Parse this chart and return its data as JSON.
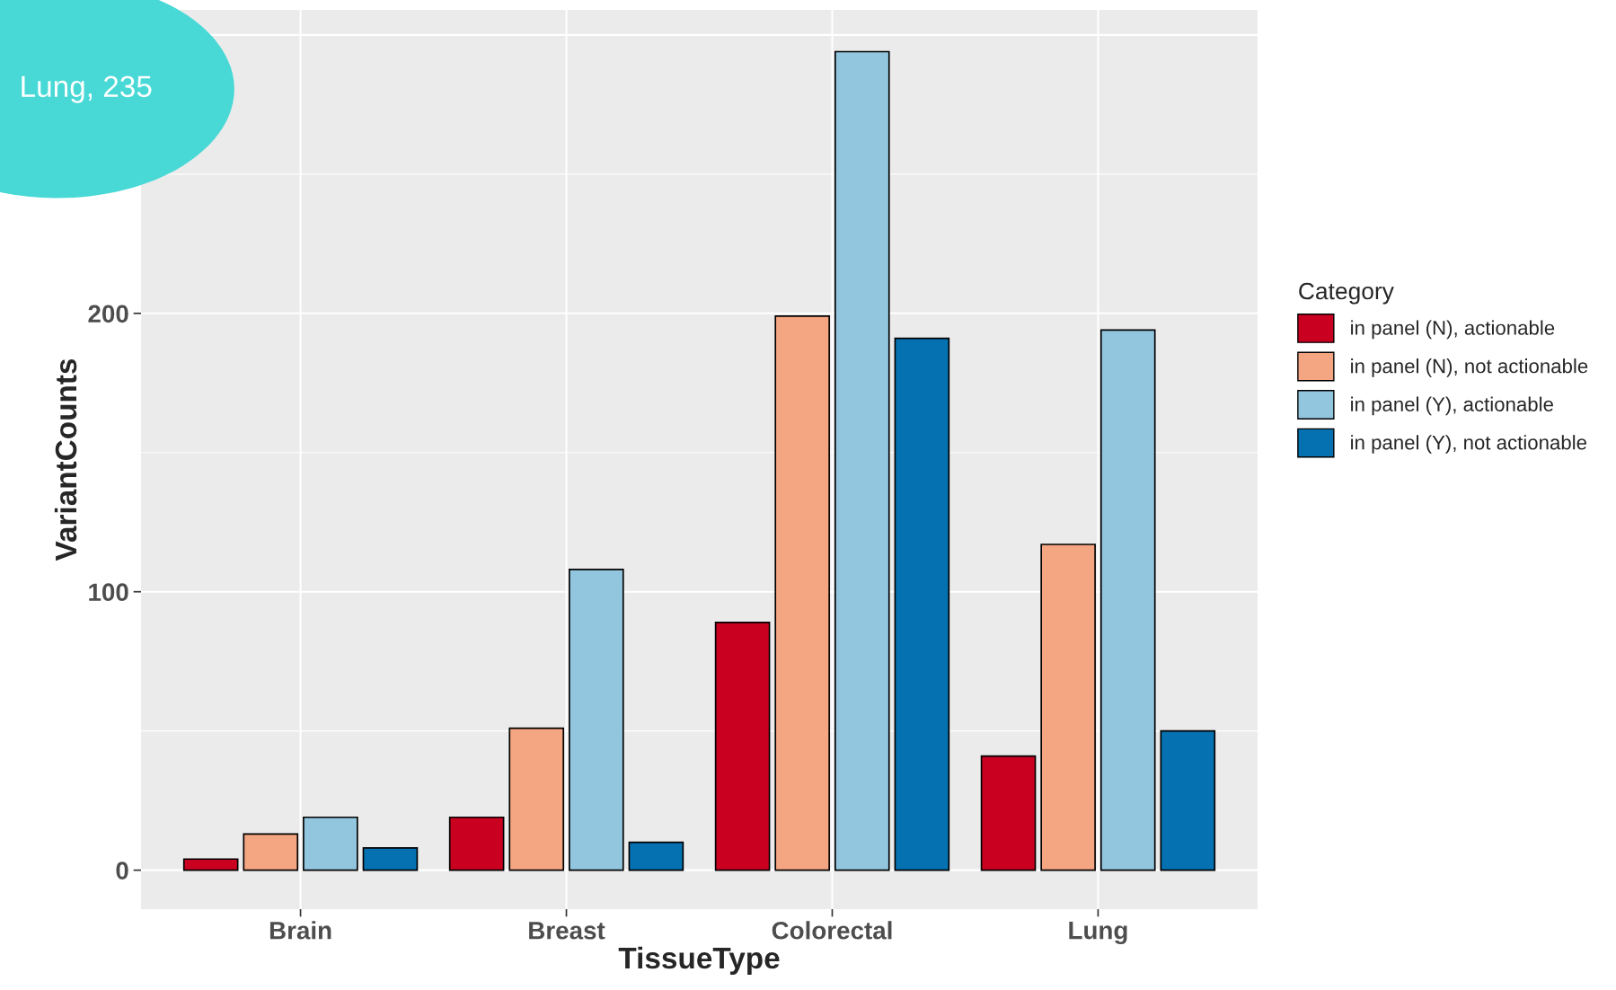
{
  "chart_data": {
    "type": "bar",
    "xlabel": "TissueType",
    "ylabel": "VariantCounts",
    "legend_title": "Category",
    "categories": [
      "Brain",
      "Breast",
      "Colorectal",
      "Lung"
    ],
    "series": [
      {
        "name": "in panel (N), actionable",
        "color": "#ca0020",
        "values": [
          4,
          19,
          89,
          41
        ]
      },
      {
        "name": "in panel (N), not actionable",
        "color": "#f4a582",
        "values": [
          13,
          51,
          199,
          117
        ]
      },
      {
        "name": "in panel (Y), actionable",
        "color": "#92c5de",
        "values": [
          19,
          108,
          294,
          194
        ]
      },
      {
        "name": "in panel (Y), not actionable",
        "color": "#0571b0",
        "values": [
          8,
          10,
          191,
          50
        ]
      }
    ],
    "ylim": [
      -14,
      309
    ],
    "yticks": [
      0,
      100,
      200,
      {
        "value": 300,
        "label": null
      }
    ],
    "grid": true,
    "legend": "right",
    "annotations": [
      "Lung, 235"
    ]
  }
}
